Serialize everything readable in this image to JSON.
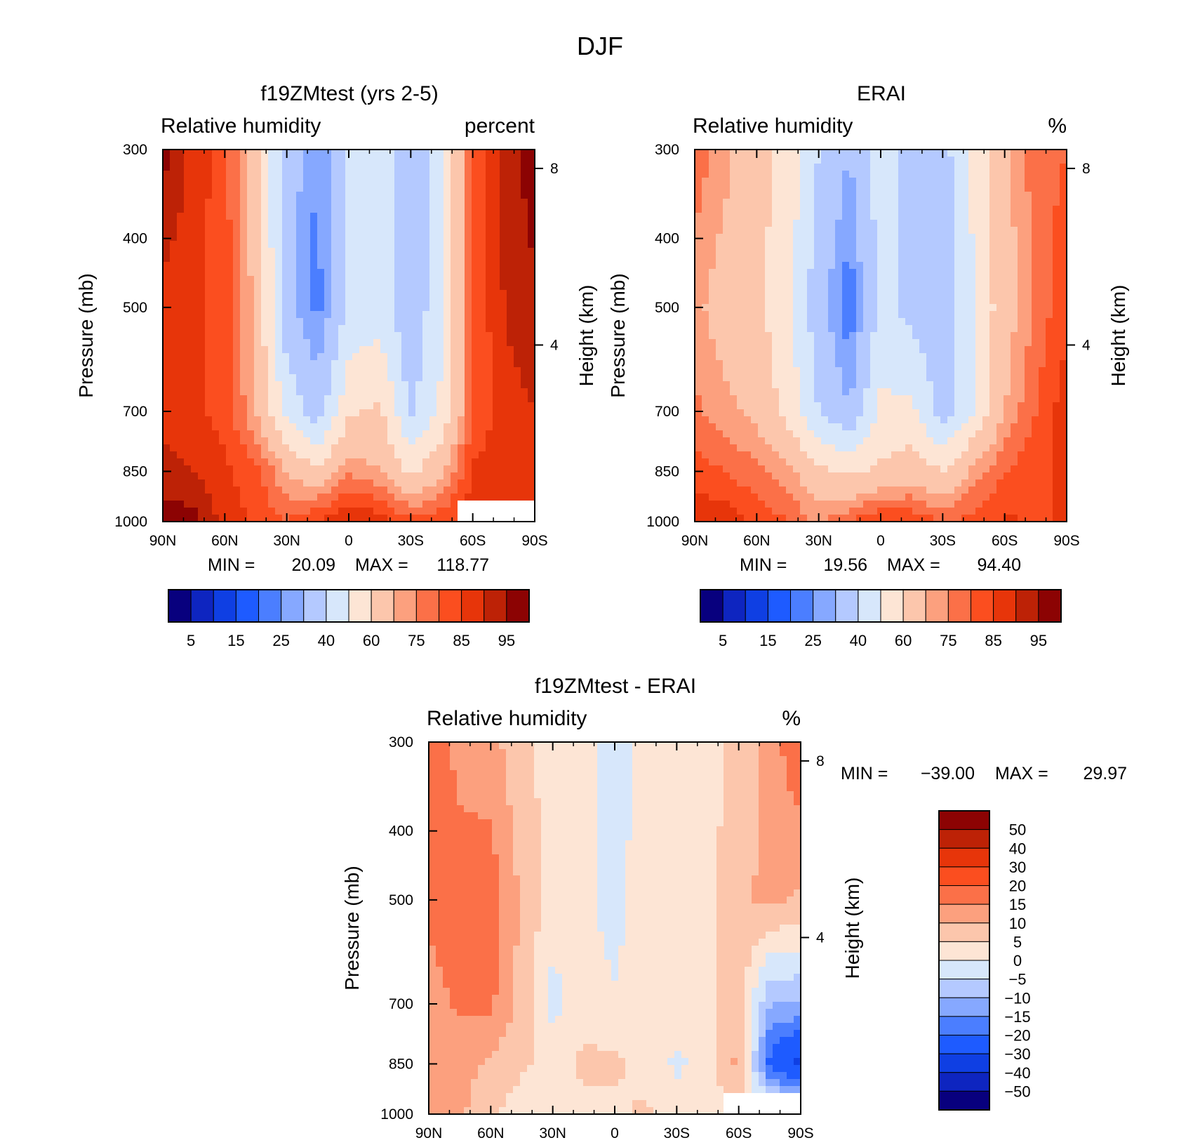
{
  "figure_title": "DJF",
  "colors": {
    "diverging_15": [
      "#08007e",
      "#0e25c0",
      "#0f3fe3",
      "#1e5bff",
      "#4b7eff",
      "#86a8ff",
      "#b4c9ff",
      "#d7e7fb",
      "#fde5d5",
      "#fcc6ac",
      "#fca07e",
      "#fb7048",
      "#fb4e1f",
      "#e7350a",
      "#bd2206",
      "#8c0303"
    ],
    "diverging_16": [
      "#08007e",
      "#0e25c0",
      "#0f3fe3",
      "#1e5bff",
      "#4b7eff",
      "#86a8ff",
      "#b4c9ff",
      "#d7e7fb",
      "#fde5d5",
      "#fcc6ac",
      "#fca07e",
      "#fb7048",
      "#fb4e1f",
      "#e7350a",
      "#bd2206",
      "#8c0303"
    ]
  },
  "chart_data": [
    {
      "type": "heatmap",
      "title": "f19ZMtest (yrs 2-5)",
      "left_label": "Relative humidity",
      "right_label": "percent",
      "ylabel": "Pressure (mb)",
      "y2label": "Height (km)",
      "x_ticks": [
        "90N",
        "60N",
        "30N",
        "0",
        "30S",
        "60S",
        "90S"
      ],
      "y_ticks": [
        "300",
        "400",
        "500",
        "700",
        "850",
        "1000"
      ],
      "y2_ticks": [
        "8",
        "4"
      ],
      "ylim": [
        1000,
        300
      ],
      "stats": {
        "min_label": "MIN =",
        "min": "20.09",
        "max_label": "MAX =",
        "max": "118.77"
      },
      "colorbar_labels": [
        "5",
        "15",
        "25",
        "40",
        "60",
        "75",
        "85",
        "95"
      ],
      "profiles": {
        "lat": [
          90,
          75,
          60,
          45,
          30,
          15,
          0,
          -15,
          -30,
          -45,
          -60,
          -75,
          -90
        ],
        "p300": [
          97,
          88,
          82,
          65,
          35,
          24,
          41,
          45,
          32,
          48,
          80,
          92,
          98
        ],
        "p500": [
          88,
          86,
          83,
          68,
          33,
          23,
          42,
          45,
          32,
          48,
          80,
          90,
          94
        ],
        "p700": [
          88,
          86,
          83,
          70,
          47,
          34,
          58,
          62,
          38,
          52,
          80,
          88,
          90
        ],
        "p850": [
          92,
          90,
          86,
          82,
          70,
          62,
          74,
          70,
          58,
          68,
          86,
          88,
          90
        ],
        "p1000": [
          98,
          97,
          88,
          84,
          80,
          86,
          90,
          88,
          82,
          84,
          88,
          88,
          90
        ]
      },
      "blank_region": {
        "lat": [
          -52,
          -90
        ],
        "p": [
          925,
          1000
        ]
      }
    },
    {
      "type": "heatmap",
      "title": "ERAI",
      "left_label": "Relative humidity",
      "right_label": "%",
      "ylabel": "Pressure (mb)",
      "y2label": "Height (km)",
      "x_ticks": [
        "90N",
        "60N",
        "30N",
        "0",
        "30S",
        "60S",
        "90S"
      ],
      "y_ticks": [
        "300",
        "400",
        "500",
        "700",
        "850",
        "1000"
      ],
      "y2_ticks": [
        "8",
        "4"
      ],
      "ylim": [
        1000,
        300
      ],
      "stats": {
        "min_label": "MIN =",
        "min": "19.56",
        "max_label": "MAX =",
        "max": "94.40"
      },
      "colorbar_labels": [
        "5",
        "15",
        "25",
        "40",
        "60",
        "75",
        "85",
        "95"
      ],
      "profiles": {
        "lat": [
          90,
          75,
          60,
          45,
          30,
          15,
          0,
          -15,
          -30,
          -45,
          -60,
          -75,
          -90
        ],
        "p300": [
          78,
          72,
          64,
          56,
          40,
          30,
          45,
          37,
          36,
          52,
          68,
          78,
          80
        ],
        "p500": [
          72,
          66,
          62,
          54,
          33,
          21,
          43,
          37,
          32,
          50,
          66,
          76,
          84
        ],
        "p700": [
          76,
          72,
          68,
          56,
          40,
          30,
          52,
          52,
          35,
          50,
          70,
          80,
          88
        ],
        "p850": [
          82,
          80,
          76,
          72,
          62,
          58,
          62,
          66,
          60,
          72,
          80,
          84,
          86
        ],
        "p1000": [
          90,
          88,
          84,
          80,
          74,
          80,
          86,
          84,
          80,
          82,
          86,
          84,
          86
        ]
      }
    },
    {
      "type": "heatmap",
      "title": "f19ZMtest - ERAI",
      "left_label": "Relative humidity",
      "right_label": "%",
      "ylabel": "Pressure (mb)",
      "y2label": "Height (km)",
      "x_ticks": [
        "90N",
        "60N",
        "30N",
        "0",
        "30S",
        "60S",
        "90S"
      ],
      "y_ticks": [
        "300",
        "400",
        "500",
        "700",
        "850",
        "1000"
      ],
      "y2_ticks": [
        "8",
        "4"
      ],
      "ylim": [
        1000,
        300
      ],
      "stats": {
        "min_label": "MIN =",
        "min": "−39.00",
        "max_label": "MAX =",
        "max": "29.97"
      },
      "colorbar_labels": [
        "50",
        "40",
        "30",
        "20",
        "15",
        "10",
        "5",
        "0",
        "−5",
        "−10",
        "−15",
        "−20",
        "−30",
        "−40",
        "−50"
      ],
      "profiles": {
        "lat": [
          90,
          75,
          60,
          45,
          30,
          15,
          0,
          -15,
          -30,
          -45,
          -60,
          -75,
          -90
        ],
        "p300": [
          20,
          13,
          12,
          6,
          3,
          2,
          -3,
          3,
          3,
          3,
          7,
          12,
          20
        ],
        "p500": [
          16,
          18,
          18,
          9,
          3,
          2,
          -3,
          4,
          3,
          3,
          9,
          11,
          9
        ],
        "p700": [
          13,
          16,
          16,
          8,
          -2,
          3,
          1,
          4,
          3,
          3,
          8,
          -10,
          -10
        ],
        "p850": [
          12,
          12,
          9,
          6,
          3,
          6,
          6,
          3,
          -1,
          2,
          12,
          -22,
          -33
        ],
        "p1000": [
          10,
          11,
          6,
          2,
          1,
          4,
          4,
          6,
          2,
          3,
          4,
          4,
          4
        ]
      },
      "blank_region": {
        "lat": [
          -52,
          -90
        ],
        "p": [
          925,
          1000
        ]
      }
    }
  ]
}
